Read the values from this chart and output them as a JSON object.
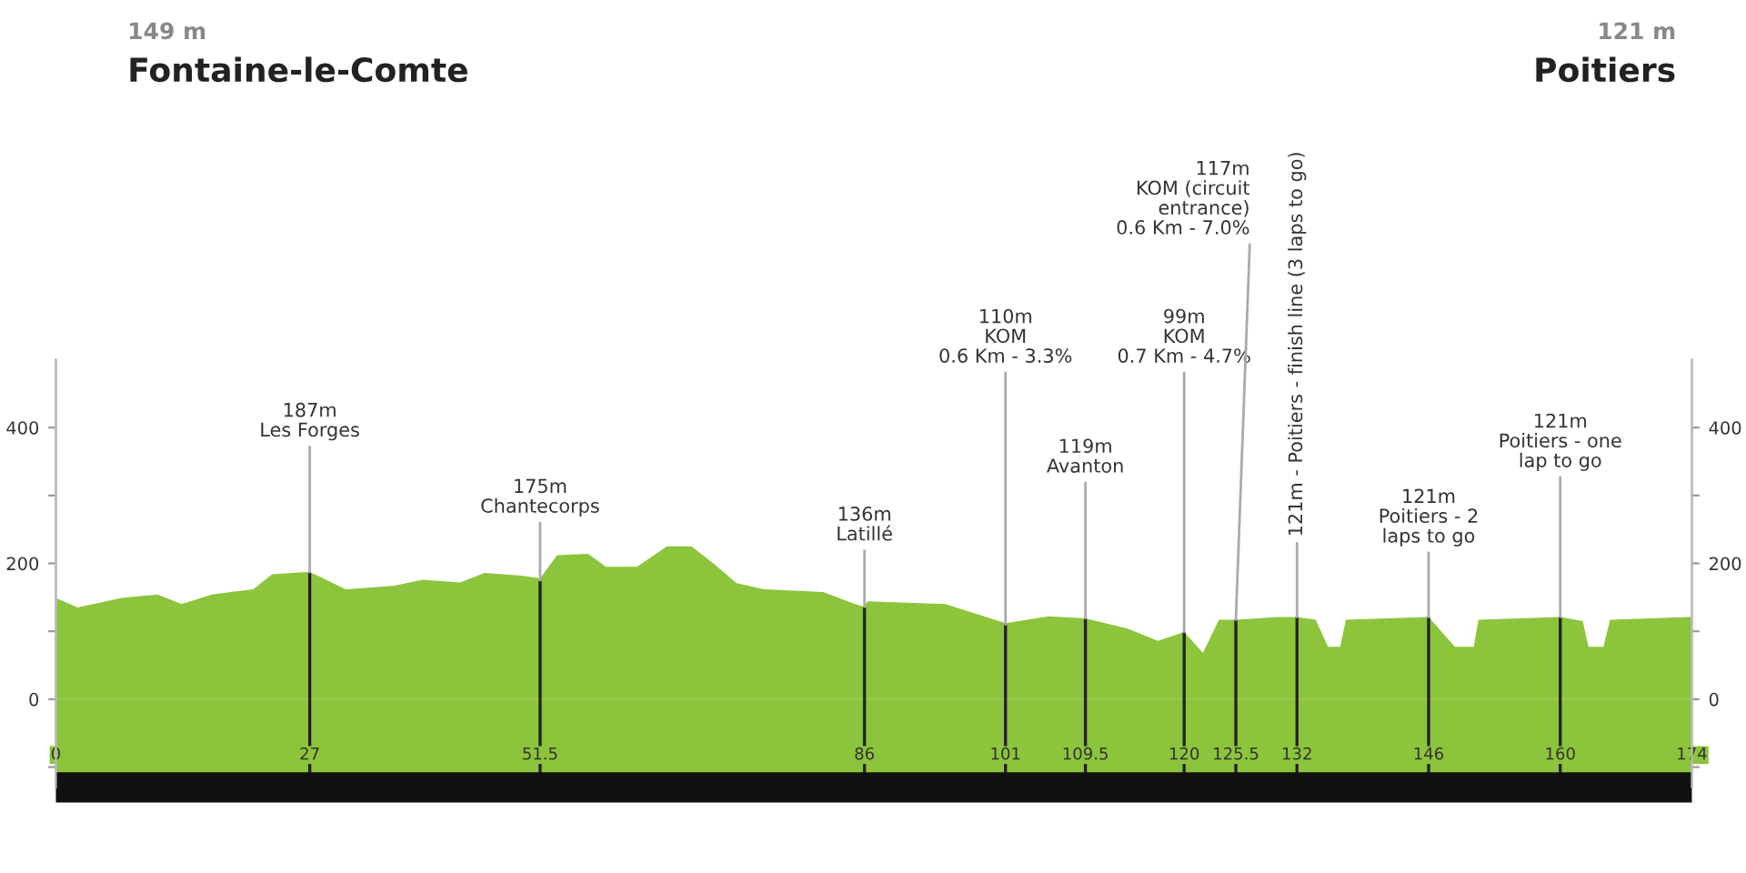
{
  "chart_data": {
    "type": "area",
    "annotations": [
      "149 m",
      "Fontaine-le-Comte",
      "121 m",
      "Poitiers",
      {
        "text": "187m\nLes Forges",
        "x": 27,
        "y": 187
      },
      {
        "text": "175m\nChantecorps",
        "x": 51.5,
        "y": 175
      },
      {
        "text": "136m\nLatillé",
        "x": 86,
        "y": 136
      },
      {
        "text": "110m\nKOM\n0.6 Km - 3.3%",
        "x": 101,
        "y": 110
      },
      {
        "text": "119m\nAvanton",
        "x": 109.5,
        "y": 119
      },
      {
        "text": "99m\nKOM\n0.7 Km - 4.7%",
        "x": 120,
        "y": 99
      },
      {
        "text": "117m\nKOM (circuit\nentrance)\n0.6 Km - 7.0%",
        "x": 125.5,
        "y": 117
      },
      {
        "text": "121m - Poitiers - finish line (3 laps to go)",
        "x": 132,
        "y": 121
      },
      {
        "text": "121m\nPoitiers - 2\nlaps to go",
        "x": 146,
        "y": 121
      },
      {
        "text": "121m\nPoitiers - one\nlap to go",
        "x": 160,
        "y": 121
      }
    ],
    "x": [
      0,
      2.3,
      7,
      10.8,
      13.4,
      16.6,
      21,
      23,
      26.3,
      27,
      28,
      30.8,
      35.9,
      39,
      43,
      45.6,
      49.5,
      51.5,
      53.3,
      56.6,
      58.5,
      61.8,
      65,
      67.6,
      70.1,
      72.4,
      75.3,
      81.6,
      85,
      86,
      86.3,
      94.6,
      101,
      105.6,
      109.5,
      114,
      117.2,
      120,
      122,
      123.7,
      125.5,
      130,
      132,
      134,
      135.3,
      136.6,
      137.2,
      146,
      148.8,
      150.8,
      151.3,
      160,
      162.4,
      163,
      164.6,
      165.3,
      173.6,
      174
    ],
    "series": [
      {
        "color": "#8cc43c",
        "values": [
          149,
          135,
          149,
          154,
          140,
          154,
          162,
          184,
          187,
          187,
          181,
          162,
          167,
          176,
          172,
          186,
          182,
          178,
          212,
          214,
          195,
          195,
          225,
          225,
          198,
          171,
          162,
          158,
          140,
          136,
          144,
          140,
          112,
          122,
          119,
          104,
          86,
          99,
          68,
          117,
          117,
          121,
          121,
          117,
          77,
          77,
          117,
          121,
          77,
          77,
          117,
          121,
          115,
          77,
          77,
          117,
          121,
          121
        ]
      }
    ],
    "xlim": [
      0,
      174
    ],
    "xticks": [
      0,
      27,
      51.5,
      86,
      101,
      109.5,
      120,
      125.5,
      132,
      146,
      160,
      174
    ],
    "ylim": [
      -130,
      500
    ],
    "yticks": [
      {
        "value": -100,
        "label": null
      },
      0,
      {
        "value": 100,
        "label": null
      },
      200,
      {
        "value": 300,
        "label": null
      },
      400
    ],
    "y2lim": [
      -130,
      500
    ],
    "y2ticks": [
      {
        "value": -100,
        "label": null
      },
      0,
      {
        "value": 100,
        "label": null
      },
      200,
      {
        "value": 300,
        "label": null
      },
      400
    ],
    "bands": [
      {
        "axis": "y",
        "from": -130,
        "to": 0,
        "color": "#8cc43c"
      }
    ],
    "grid": false,
    "legend": false
  }
}
